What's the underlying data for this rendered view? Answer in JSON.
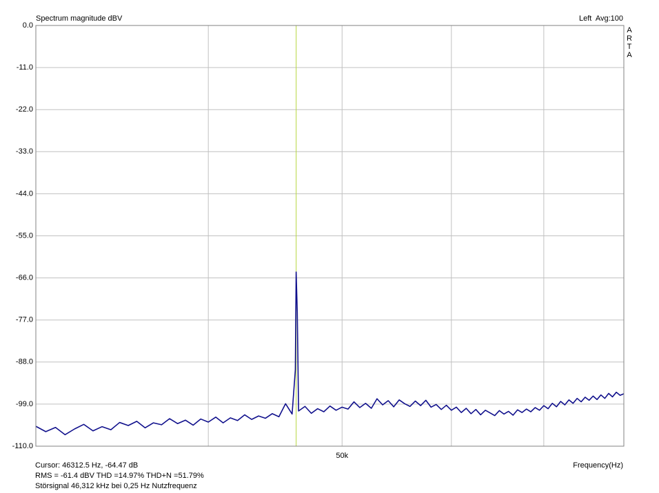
{
  "chart_data": {
    "type": "line",
    "title": "Spectrum magnitude dBV",
    "top_right": "Left  Avg:100",
    "side_label": "ARTA",
    "xlabel": "Frequency(Hz)",
    "xscale": "log",
    "xlim": [
      30000,
      80000
    ],
    "xticks": [
      {
        "value": 50000,
        "label": "50k"
      }
    ],
    "xgrid": [
      40000,
      50000,
      60000,
      70000
    ],
    "ylim": [
      -110,
      0
    ],
    "yticks": [
      {
        "value": 0,
        "label": "0.0"
      },
      {
        "value": -11,
        "label": "-11.0"
      },
      {
        "value": -22,
        "label": "-22.0"
      },
      {
        "value": -33,
        "label": "-33.0"
      },
      {
        "value": -44,
        "label": "-44.0"
      },
      {
        "value": -55,
        "label": "-55.0"
      },
      {
        "value": -66,
        "label": "-66.0"
      },
      {
        "value": -77,
        "label": "-77.0"
      },
      {
        "value": -88,
        "label": "-88.0"
      },
      {
        "value": -99,
        "label": "-99.0"
      },
      {
        "value": -110,
        "label": "-110.0"
      }
    ],
    "grid": true,
    "cursor_x": 46312.5,
    "cursor_color": "#b8d840",
    "footer": [
      "Cursor: 46312.5 Hz, -64.47 dB",
      "RMS =  -61.4 dBV   THD =14.97%   THD+N =51.79%",
      "Störsignal 46,312 kHz bei 0,25 Hz Nutzfrequenz"
    ],
    "footer_colors": [
      "#000000",
      "#d02020",
      "#000000"
    ],
    "x": [
      30000,
      30500,
      31000,
      31500,
      32000,
      32500,
      33000,
      33500,
      34000,
      34500,
      35000,
      35500,
      36000,
      36500,
      37000,
      37500,
      38000,
      38500,
      39000,
      39500,
      40000,
      40500,
      41000,
      41500,
      42000,
      42500,
      43000,
      43500,
      44000,
      44500,
      45000,
      45500,
      46000,
      46250,
      46312.5,
      46400,
      46500,
      47000,
      47500,
      48000,
      48500,
      49000,
      49500,
      50000,
      50500,
      51000,
      51500,
      52000,
      52500,
      53000,
      53500,
      54000,
      54500,
      55000,
      55500,
      56000,
      56500,
      57000,
      57500,
      58000,
      58500,
      59000,
      59500,
      60000,
      60500,
      61000,
      61500,
      62000,
      62500,
      63000,
      63500,
      64000,
      64500,
      65000,
      65500,
      66000,
      66500,
      67000,
      67500,
      68000,
      68500,
      69000,
      69500,
      70000,
      70500,
      71000,
      71500,
      72000,
      72500,
      73000,
      73500,
      74000,
      74500,
      75000,
      75500,
      76000,
      76500,
      77000,
      77500,
      78000,
      78500,
      79000,
      79500,
      80000
    ],
    "series": [
      {
        "name": "Left",
        "color": "#10108c",
        "values": [
          -104.8,
          -106.2,
          -105.1,
          -107.0,
          -105.5,
          -104.3,
          -106.0,
          -104.9,
          -105.7,
          -103.8,
          -104.6,
          -103.5,
          -105.2,
          -103.9,
          -104.4,
          -102.8,
          -104.1,
          -103.2,
          -104.5,
          -102.9,
          -103.7,
          -102.4,
          -103.9,
          -102.6,
          -103.3,
          -101.8,
          -103.0,
          -102.1,
          -102.7,
          -101.5,
          -102.3,
          -98.9,
          -101.6,
          -90.0,
          -64.47,
          -75.0,
          -100.8,
          -99.6,
          -101.4,
          -100.2,
          -101.0,
          -99.5,
          -100.6,
          -99.8,
          -100.3,
          -98.4,
          -99.9,
          -98.8,
          -100.1,
          -97.6,
          -99.2,
          -98.1,
          -99.7,
          -97.9,
          -98.9,
          -99.6,
          -98.2,
          -99.4,
          -98.0,
          -99.8,
          -99.1,
          -100.4,
          -99.3,
          -100.6,
          -99.8,
          -101.2,
          -100.1,
          -101.5,
          -100.4,
          -101.8,
          -100.6,
          -101.3,
          -102.0,
          -100.7,
          -101.6,
          -100.9,
          -101.9,
          -100.5,
          -101.2,
          -100.3,
          -101.0,
          -99.9,
          -100.6,
          -99.4,
          -100.2,
          -98.8,
          -99.7,
          -98.3,
          -99.2,
          -97.9,
          -98.8,
          -97.5,
          -98.4,
          -97.2,
          -98.0,
          -96.9,
          -97.8,
          -96.6,
          -97.5,
          -96.2,
          -97.1,
          -95.9,
          -96.7,
          -96.3
        ]
      }
    ]
  }
}
